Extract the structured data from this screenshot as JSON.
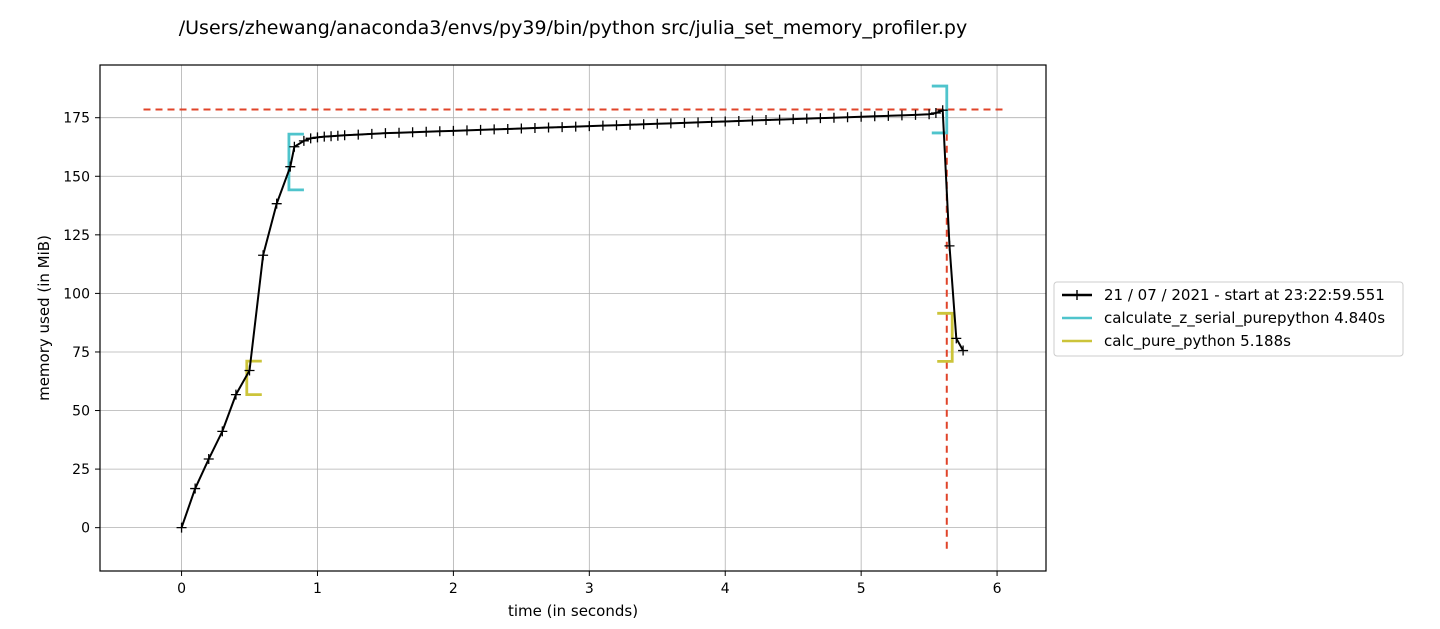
{
  "chart_data": {
    "type": "line",
    "title": "/Users/zhewang/anaconda3/envs/py39/bin/python src/julia_set_memory_profiler.py",
    "xlabel": "time (in seconds)",
    "ylabel": "memory used (in MiB)",
    "xlim": [
      -0.6,
      6.36
    ],
    "ylim": [
      -18.5,
      197.5
    ],
    "xticks": [
      0,
      1,
      2,
      3,
      4,
      5,
      6
    ],
    "yticks": [
      0,
      25,
      50,
      75,
      100,
      125,
      150,
      175
    ],
    "grid": true,
    "legend_position": "outside-right",
    "series": [
      {
        "name": "21 / 07 / 2021 - start at 23:22:59.551",
        "color": "#000000",
        "marker": "+",
        "x": [
          0,
          0.1,
          0.2,
          0.3,
          0.4,
          0.5,
          0.6,
          0.7,
          0.8,
          0.83,
          0.9,
          0.95,
          1.0,
          1.05,
          1.1,
          1.15,
          1.2,
          1.3,
          1.4,
          1.5,
          1.6,
          1.7,
          1.8,
          1.9,
          2.0,
          2.1,
          2.2,
          2.3,
          2.4,
          2.5,
          2.6,
          2.7,
          2.8,
          2.9,
          3.0,
          3.1,
          3.2,
          3.3,
          3.4,
          3.5,
          3.6,
          3.7,
          3.8,
          3.9,
          4.0,
          4.1,
          4.2,
          4.3,
          4.4,
          4.5,
          4.6,
          4.7,
          4.8,
          4.9,
          5.0,
          5.1,
          5.2,
          5.3,
          5.4,
          5.5,
          5.55,
          5.6,
          5.65,
          5.7,
          5.75
        ],
        "y": [
          0,
          16.7,
          29.3,
          41.1,
          56.8,
          67.1,
          116.3,
          138.3,
          154.1,
          162.6,
          165.1,
          166.2,
          166.6,
          166.9,
          167.1,
          167.3,
          167.5,
          167.8,
          168.1,
          168.4,
          168.6,
          168.8,
          169.0,
          169.2,
          169.4,
          169.6,
          169.8,
          170.0,
          170.2,
          170.4,
          170.6,
          170.8,
          171.0,
          171.2,
          171.4,
          171.6,
          171.8,
          172.0,
          172.2,
          172.4,
          172.6,
          172.8,
          173.0,
          173.2,
          173.4,
          173.6,
          173.8,
          174.0,
          174.2,
          174.4,
          174.6,
          174.8,
          175.0,
          175.2,
          175.4,
          175.6,
          175.8,
          176.0,
          176.2,
          176.5,
          177.0,
          178.2,
          120.3,
          80.8,
          75.6
        ]
      }
    ],
    "brackets": [
      {
        "name": "calculate_z_serial_purepython 4.840s",
        "color": "#4fc4cc",
        "x_start": 0.79,
        "x_end": 5.63,
        "y_start": 144.2,
        "y_end": 168.0
      },
      {
        "name": "calc_pure_python 5.188s",
        "color": "#ccc43a",
        "x_start": 0.48,
        "x_end": 5.67,
        "y_start": 56.8,
        "y_end": 71.1
      }
    ],
    "peak_markers": {
      "color": "#e0442a",
      "max_memory": 178.5,
      "time_of_max": 5.63
    }
  }
}
